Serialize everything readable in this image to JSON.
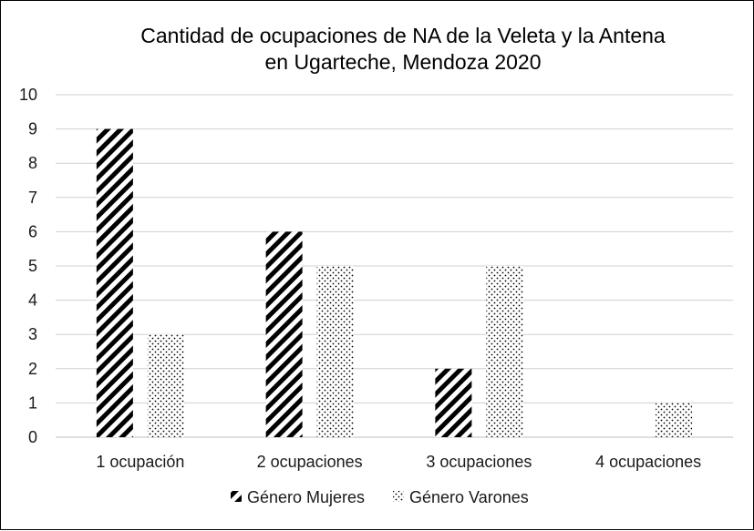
{
  "chart_data": {
    "type": "bar",
    "title_lines": [
      "Cantidad de ocupaciones de NA de la Veleta y la Antena",
      "en Ugarteche, Mendoza 2020"
    ],
    "categories": [
      "1 ocupación",
      "2 ocupaciones",
      "3 ocupaciones",
      "4 ocupaciones"
    ],
    "series": [
      {
        "name": "Género Mujeres",
        "values": [
          9,
          6,
          2,
          0
        ],
        "pattern": "diagonal-stripes"
      },
      {
        "name": "Género Varones",
        "values": [
          3,
          5,
          5,
          1
        ],
        "pattern": "dots"
      }
    ],
    "ylim": [
      0,
      10
    ],
    "yticks": [
      "0",
      "1",
      "2",
      "3",
      "4",
      "5",
      "6",
      "7",
      "8",
      "9",
      "10"
    ],
    "grid": true,
    "legend_position": "bottom",
    "colors": {
      "ink": "#000000",
      "grid": "#d0d0d0"
    }
  }
}
